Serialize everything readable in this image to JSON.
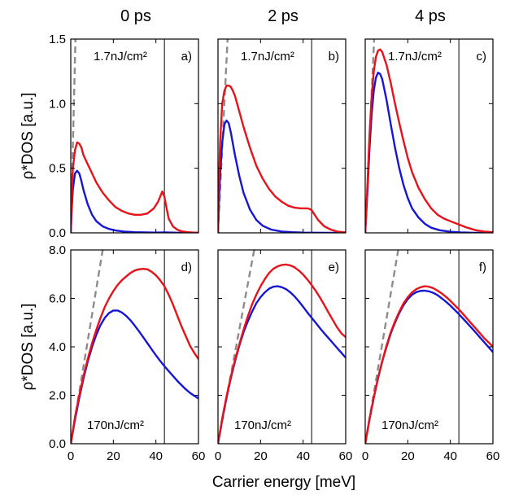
{
  "figure": {
    "column_titles": [
      "0 ps",
      "2 ps",
      "4 ps"
    ],
    "ylabel": "ρ*DOS [a.u.]",
    "xlabel": "Carrier energy [meV]"
  },
  "colors": {
    "red_series": "#e8121a",
    "blue_series": "#1616d6",
    "dashed_line": "#8c8c8c",
    "vertical_line": "#000000"
  },
  "chart_data": [
    {
      "type": "line",
      "panel_label": "a)",
      "annotation": "1.7nJ/cm²",
      "xlim": [
        0,
        60
      ],
      "ylim": [
        0,
        1.5
      ],
      "xticks": [
        "0",
        "20",
        "40",
        "60"
      ],
      "yticks": [
        "0.0",
        "0.5",
        "1.0",
        "1.5"
      ],
      "vertical_line_x": 44,
      "dashed_line": {
        "x": [
          0,
          2.2
        ],
        "y": [
          0,
          1.5
        ]
      },
      "series": [
        {
          "color": "red",
          "x": [
            0,
            0.5,
            1,
            2,
            3,
            4,
            5,
            6,
            8,
            10,
            12,
            15,
            18,
            21,
            24,
            27,
            30,
            33,
            36,
            39,
            41,
            42,
            43,
            44,
            45,
            46,
            48,
            50,
            52,
            55,
            58,
            60
          ],
          "y": [
            0,
            0.32,
            0.5,
            0.64,
            0.7,
            0.69,
            0.66,
            0.6,
            0.53,
            0.46,
            0.39,
            0.31,
            0.25,
            0.2,
            0.17,
            0.15,
            0.14,
            0.14,
            0.15,
            0.19,
            0.24,
            0.28,
            0.32,
            0.28,
            0.19,
            0.11,
            0.05,
            0.025,
            0.012,
            0.005,
            0.002,
            0.001
          ]
        },
        {
          "color": "blue",
          "x": [
            0,
            0.5,
            1,
            2,
            3,
            4,
            5,
            6,
            8,
            10,
            12,
            15,
            18,
            21,
            25,
            30,
            35,
            40,
            44,
            50,
            60
          ],
          "y": [
            0,
            0.2,
            0.34,
            0.46,
            0.48,
            0.46,
            0.4,
            0.33,
            0.22,
            0.14,
            0.09,
            0.05,
            0.03,
            0.018,
            0.01,
            0.005,
            0.003,
            0.002,
            0.003,
            0.001,
            0
          ]
        }
      ]
    },
    {
      "type": "line",
      "panel_label": "b)",
      "annotation": "1.7nJ/cm²",
      "xlim": [
        0,
        60
      ],
      "ylim": [
        0,
        1.5
      ],
      "xticks": [
        "0",
        "20",
        "40",
        "60"
      ],
      "yticks": [
        "0.0",
        "0.5",
        "1.0",
        "1.5"
      ],
      "vertical_line_x": 44,
      "dashed_line": {
        "x": [
          0,
          4.5
        ],
        "y": [
          0,
          1.5
        ]
      },
      "series": [
        {
          "color": "red",
          "x": [
            0,
            0.5,
            1,
            2,
            3,
            4,
            5,
            6,
            7,
            8,
            10,
            12,
            15,
            18,
            21,
            24,
            27,
            30,
            33,
            36,
            39,
            42,
            43,
            44,
            45,
            47,
            50,
            53,
            56,
            60
          ],
          "y": [
            0,
            0.4,
            0.7,
            1.0,
            1.1,
            1.14,
            1.14,
            1.13,
            1.1,
            1.06,
            0.94,
            0.82,
            0.66,
            0.52,
            0.42,
            0.34,
            0.28,
            0.24,
            0.21,
            0.195,
            0.19,
            0.19,
            0.185,
            0.175,
            0.15,
            0.1,
            0.05,
            0.025,
            0.01,
            0.004
          ]
        },
        {
          "color": "blue",
          "x": [
            0,
            0.5,
            1,
            2,
            3,
            4,
            5,
            6,
            8,
            10,
            12,
            15,
            18,
            21,
            25,
            30,
            35,
            40,
            44,
            50,
            60
          ],
          "y": [
            0,
            0.25,
            0.45,
            0.7,
            0.84,
            0.87,
            0.85,
            0.78,
            0.6,
            0.44,
            0.31,
            0.18,
            0.1,
            0.055,
            0.025,
            0.01,
            0.005,
            0.002,
            0.001,
            0,
            0
          ]
        }
      ]
    },
    {
      "type": "line",
      "panel_label": "c)",
      "annotation": "1.7nJ/cm²",
      "xlim": [
        0,
        60
      ],
      "ylim": [
        0,
        1.5
      ],
      "xticks": [
        "0",
        "20",
        "40",
        "60"
      ],
      "yticks": [
        "0.0",
        "0.5",
        "1.0",
        "1.5"
      ],
      "vertical_line_x": 44,
      "dashed_line": {
        "x": [
          0,
          4.2
        ],
        "y": [
          0,
          1.5
        ]
      },
      "series": [
        {
          "color": "red",
          "x": [
            0,
            1,
            2,
            3,
            4,
            5,
            6,
            7,
            8,
            10,
            12,
            14,
            16,
            18,
            20,
            22,
            25,
            28,
            31,
            34,
            37,
            40,
            44,
            48,
            52,
            56,
            60
          ],
          "y": [
            0,
            0.35,
            0.75,
            1.05,
            1.25,
            1.36,
            1.41,
            1.42,
            1.4,
            1.3,
            1.16,
            1.0,
            0.85,
            0.71,
            0.58,
            0.47,
            0.35,
            0.26,
            0.19,
            0.14,
            0.11,
            0.09,
            0.065,
            0.04,
            0.02,
            0.01,
            0.005
          ]
        },
        {
          "color": "blue",
          "x": [
            0,
            1,
            2,
            3,
            4,
            5,
            6,
            7,
            8,
            10,
            12,
            14,
            16,
            18,
            20,
            22,
            25,
            28,
            31,
            35,
            40,
            45,
            50,
            60
          ],
          "y": [
            0,
            0.3,
            0.65,
            0.92,
            1.1,
            1.2,
            1.24,
            1.23,
            1.19,
            1.03,
            0.84,
            0.66,
            0.5,
            0.37,
            0.27,
            0.19,
            0.12,
            0.07,
            0.04,
            0.02,
            0.008,
            0.004,
            0.001,
            0
          ]
        }
      ]
    },
    {
      "type": "line",
      "panel_label": "d)",
      "annotation": "170nJ/cm²",
      "xlim": [
        0,
        60
      ],
      "ylim": [
        0,
        8.0
      ],
      "xticks": [
        "0",
        "20",
        "40",
        "60"
      ],
      "yticks": [
        "0.0",
        "2.0",
        "4.0",
        "6.0",
        "8.0"
      ],
      "vertical_line_x": 44,
      "dashed_line": {
        "x": [
          0,
          15
        ],
        "y": [
          0,
          8.0
        ]
      },
      "series": [
        {
          "color": "red",
          "x": [
            0,
            2,
            4,
            6,
            8,
            10,
            12,
            14,
            16,
            18,
            20,
            22,
            24,
            26,
            28,
            30,
            32,
            34,
            36,
            38,
            40,
            42,
            44,
            46,
            48,
            50,
            52,
            54,
            56,
            58,
            60
          ],
          "y": [
            0,
            1.1,
            2.0,
            2.8,
            3.5,
            4.15,
            4.7,
            5.2,
            5.65,
            6.0,
            6.3,
            6.55,
            6.75,
            6.9,
            7.05,
            7.15,
            7.2,
            7.22,
            7.2,
            7.1,
            6.95,
            6.75,
            6.5,
            6.15,
            5.75,
            5.3,
            4.85,
            4.45,
            4.05,
            3.75,
            3.5
          ]
        },
        {
          "color": "blue",
          "x": [
            0,
            2,
            4,
            6,
            8,
            10,
            12,
            14,
            16,
            18,
            20,
            22,
            24,
            26,
            28,
            30,
            32,
            34,
            36,
            38,
            40,
            42,
            44,
            46,
            48,
            50,
            52,
            54,
            56,
            58,
            60
          ],
          "y": [
            0,
            1.0,
            1.9,
            2.7,
            3.4,
            4.0,
            4.5,
            4.9,
            5.2,
            5.4,
            5.5,
            5.5,
            5.42,
            5.28,
            5.1,
            4.88,
            4.65,
            4.4,
            4.15,
            3.9,
            3.65,
            3.42,
            3.2,
            3.0,
            2.8,
            2.6,
            2.42,
            2.25,
            2.1,
            1.98,
            1.87
          ]
        }
      ]
    },
    {
      "type": "line",
      "panel_label": "e)",
      "annotation": "170nJ/cm²",
      "xlim": [
        0,
        60
      ],
      "ylim": [
        0,
        8.0
      ],
      "xticks": [
        "0",
        "20",
        "40",
        "60"
      ],
      "yticks": [
        "0.0",
        "2.0",
        "4.0",
        "6.0",
        "8.0"
      ],
      "vertical_line_x": 44,
      "dashed_line": {
        "x": [
          0,
          17
        ],
        "y": [
          0,
          8.0
        ]
      },
      "series": [
        {
          "color": "red",
          "x": [
            0,
            2,
            4,
            6,
            8,
            10,
            12,
            14,
            16,
            18,
            20,
            22,
            24,
            26,
            28,
            30,
            32,
            34,
            36,
            38,
            40,
            42,
            44,
            46,
            48,
            50,
            52,
            54,
            56,
            58,
            60
          ],
          "y": [
            0,
            1.05,
            1.95,
            2.75,
            3.45,
            4.1,
            4.7,
            5.25,
            5.75,
            6.15,
            6.5,
            6.8,
            7.05,
            7.22,
            7.32,
            7.38,
            7.4,
            7.36,
            7.28,
            7.15,
            6.98,
            6.78,
            6.55,
            6.3,
            6.02,
            5.72,
            5.4,
            5.1,
            4.8,
            4.55,
            4.4
          ]
        },
        {
          "color": "blue",
          "x": [
            0,
            2,
            4,
            6,
            8,
            10,
            12,
            14,
            16,
            18,
            20,
            22,
            24,
            26,
            28,
            30,
            32,
            34,
            36,
            38,
            40,
            42,
            44,
            46,
            48,
            50,
            52,
            54,
            56,
            58,
            60
          ],
          "y": [
            0,
            1.0,
            1.9,
            2.7,
            3.4,
            4.05,
            4.6,
            5.05,
            5.45,
            5.8,
            6.05,
            6.25,
            6.4,
            6.48,
            6.5,
            6.46,
            6.38,
            6.25,
            6.08,
            5.88,
            5.65,
            5.42,
            5.2,
            4.98,
            4.76,
            4.55,
            4.35,
            4.15,
            3.95,
            3.75,
            3.55
          ]
        }
      ]
    },
    {
      "type": "line",
      "panel_label": "f)",
      "annotation": "170nJ/cm²",
      "xlim": [
        0,
        60
      ],
      "ylim": [
        0,
        8.0
      ],
      "xticks": [
        "0",
        "20",
        "40",
        "60"
      ],
      "yticks": [
        "0.0",
        "2.0",
        "4.0",
        "6.0",
        "8.0"
      ],
      "vertical_line_x": 44,
      "dashed_line": {
        "x": [
          0,
          15.5
        ],
        "y": [
          0,
          8.0
        ]
      },
      "series": [
        {
          "color": "red",
          "x": [
            0,
            2,
            4,
            6,
            8,
            10,
            12,
            14,
            16,
            18,
            20,
            22,
            24,
            26,
            28,
            30,
            32,
            34,
            36,
            38,
            40,
            42,
            44,
            46,
            48,
            50,
            52,
            54,
            56,
            58,
            60
          ],
          "y": [
            0,
            1.0,
            1.9,
            2.7,
            3.4,
            4.05,
            4.6,
            5.05,
            5.45,
            5.8,
            6.05,
            6.25,
            6.38,
            6.46,
            6.5,
            6.48,
            6.42,
            6.32,
            6.2,
            6.06,
            5.9,
            5.72,
            5.55,
            5.35,
            5.15,
            4.95,
            4.75,
            4.55,
            4.35,
            4.18,
            4.0
          ]
        },
        {
          "color": "blue",
          "x": [
            0,
            2,
            4,
            6,
            8,
            10,
            12,
            14,
            16,
            18,
            20,
            22,
            24,
            26,
            28,
            30,
            32,
            34,
            36,
            38,
            40,
            42,
            44,
            46,
            48,
            50,
            52,
            54,
            56,
            58,
            60
          ],
          "y": [
            0,
            1.0,
            1.9,
            2.7,
            3.4,
            4.0,
            4.55,
            5.0,
            5.4,
            5.72,
            5.97,
            6.15,
            6.26,
            6.31,
            6.32,
            6.29,
            6.23,
            6.13,
            6.0,
            5.86,
            5.7,
            5.53,
            5.35,
            5.16,
            4.97,
            4.78,
            4.58,
            4.38,
            4.18,
            3.98,
            3.78
          ]
        }
      ]
    }
  ]
}
